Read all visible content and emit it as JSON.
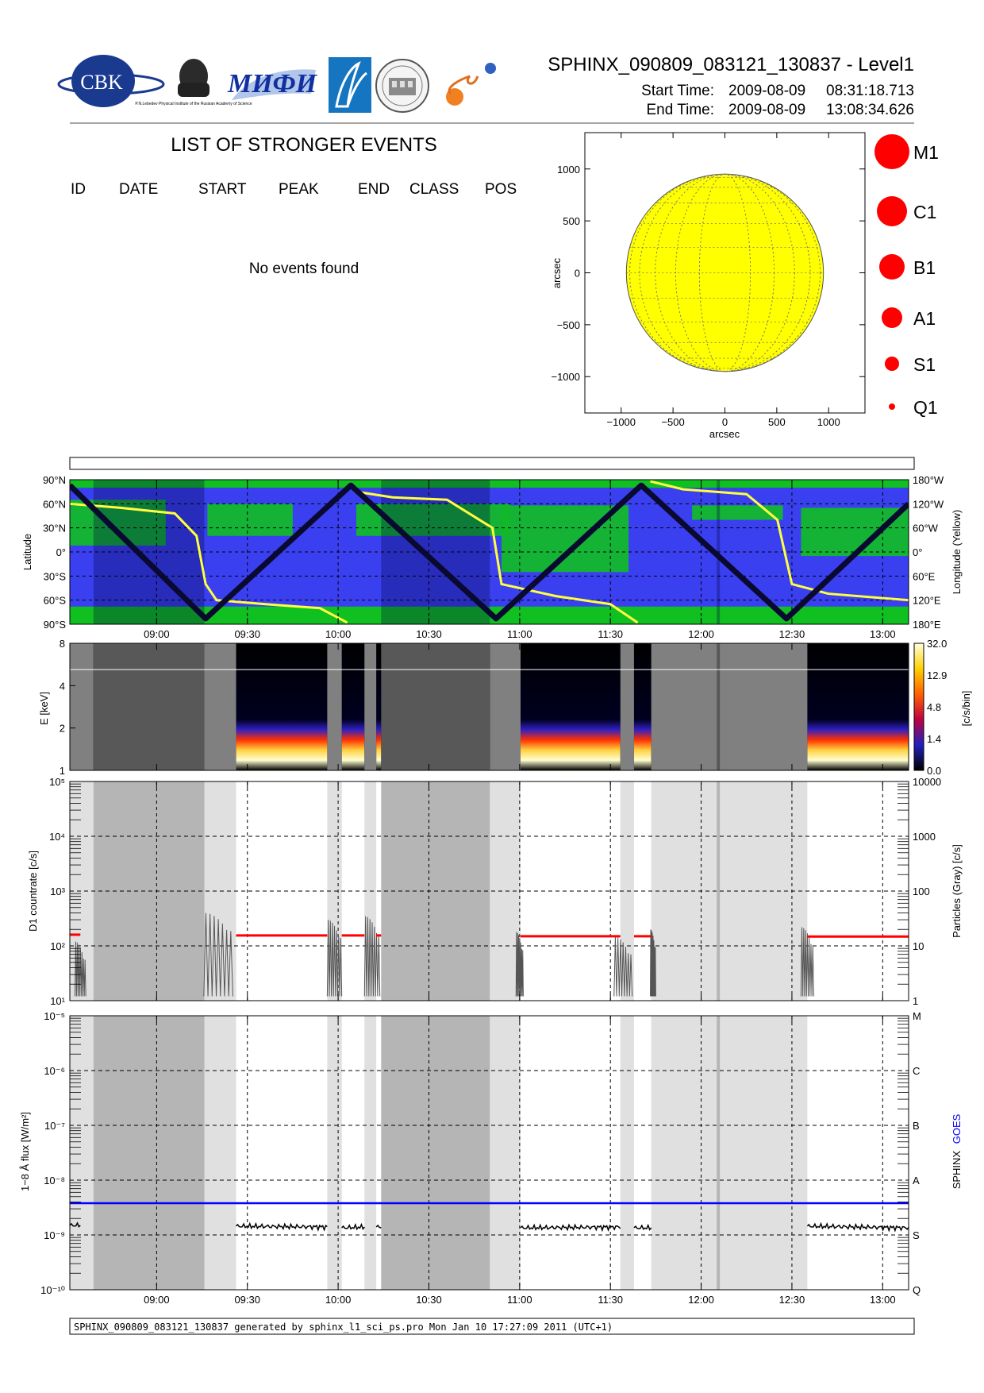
{
  "header": {
    "title": "SPHINX_090809_083121_130837 - Level1",
    "start_label": "Start Time:",
    "start_date": "2009-08-09",
    "start_time": "08:31:18.713",
    "end_label": "End Time:",
    "end_date": "2009-08-09",
    "end_time": "13:08:34.626",
    "logos": [
      {
        "name": "cbk-logo",
        "text": "CBK"
      },
      {
        "name": "lebedev-institute-logo",
        "text": "P.N.Lebedev Physical Institute of the Russian Academy of Science"
      },
      {
        "name": "mifi-logo",
        "text": "МИФИ"
      },
      {
        "name": "institute-logo",
        "text": ""
      },
      {
        "name": "seal-logo",
        "text": ""
      },
      {
        "name": "swirl-logo",
        "text": ""
      }
    ]
  },
  "events": {
    "title": "LIST OF STRONGER EVENTS",
    "columns": [
      "ID",
      "DATE",
      "START",
      "PEAK",
      "END",
      "CLASS",
      "POS"
    ],
    "empty_text": "No events found"
  },
  "sun_map": {
    "xlabel": "arcsec",
    "ylabel": "arcsec",
    "ticks": [
      -1000,
      -500,
      0,
      500,
      1000
    ],
    "tick_labels": [
      "−1000",
      "−500",
      "0",
      "500",
      "1000"
    ],
    "range": [
      -1350,
      1350
    ],
    "disk_radius": 950,
    "disk_color": "#ffff00"
  },
  "legend": {
    "classes": [
      "M1",
      "C1",
      "B1",
      "A1",
      "S1",
      "Q1"
    ],
    "color": "#ff0000"
  },
  "time_axis": {
    "ticks": [
      "09:00",
      "09:30",
      "10:00",
      "10:30",
      "11:00",
      "11:30",
      "12:00",
      "12:30",
      "13:00"
    ],
    "tick_hours": [
      9.0,
      9.5,
      10.0,
      10.5,
      11.0,
      11.5,
      12.0,
      12.5,
      13.0
    ],
    "start_hour": 8.5219,
    "end_hour": 13.1429
  },
  "gray_bands": {
    "dark": [
      [
        8.652,
        9.263
      ],
      [
        10.237,
        10.836
      ],
      [
        12.086,
        12.103
      ]
    ],
    "light": [
      [
        8.5219,
        8.652
      ],
      [
        9.263,
        9.438
      ],
      [
        9.94,
        10.02
      ],
      [
        10.145,
        10.21
      ],
      [
        10.836,
        11.005
      ],
      [
        11.555,
        11.63
      ],
      [
        11.725,
        12.585
      ]
    ]
  },
  "chart_data": [
    {
      "type": "heatmap",
      "name": "orbit-map",
      "ylabel": "Latitude",
      "y2label": "Longitude (Yellow)",
      "ytick_labels": [
        "90°N",
        "60°N",
        "30°N",
        "0°",
        "30°S",
        "60°S",
        "90°S"
      ],
      "y2tick_labels": [
        "180°W",
        "120°W",
        "60°W",
        "0°",
        "60°E",
        "120°E",
        "180°E"
      ],
      "latitude_track": {
        "x": [
          8.522,
          9.27,
          10.07,
          10.87,
          11.67,
          12.47,
          13.143
        ],
        "y": [
          83,
          -83,
          83,
          -83,
          83,
          -83,
          60
        ]
      },
      "longitude_track": {
        "x": [
          8.522,
          8.8,
          9.1,
          9.22,
          9.27,
          9.33,
          9.6,
          9.9,
          10.05,
          10.1,
          10.3,
          10.6,
          10.85,
          10.9,
          11.2,
          11.5,
          11.65,
          11.72,
          11.9,
          12.25,
          12.42,
          12.5,
          12.7,
          13.143
        ],
        "y": [
          60,
          55,
          48,
          20,
          -40,
          -60,
          -65,
          -70,
          -88,
          75,
          68,
          65,
          30,
          -40,
          -55,
          -65,
          -88,
          88,
          78,
          72,
          40,
          -40,
          -52,
          -60
        ]
      },
      "grid": true
    },
    {
      "type": "heatmap",
      "name": "spectrogram",
      "ylabel": "E [keV]",
      "yticks": [
        1,
        2,
        4,
        8
      ],
      "colorbar_label": "[c/s/bin]",
      "colorbar_ticks": [
        "32.0",
        "12.9",
        "4.8",
        "1.4",
        "0.0"
      ]
    },
    {
      "type": "line",
      "name": "d1-countrate",
      "ylabel": "D1 countrate [c/s]",
      "y2label": "Particles (Gray) [c/s]",
      "yscale": "log",
      "ylim": [
        10,
        100000
      ],
      "ytick_labels": [
        "10¹",
        "10²",
        "10³",
        "10⁴",
        "10⁵"
      ],
      "y2tick_labels": [
        "1",
        "10",
        "100",
        "1000",
        "10000"
      ],
      "series": [
        {
          "name": "",
          "color": "#ff0000",
          "segments": [
            {
              "x": [
                8.522,
                8.58
              ],
              "y": [
                160,
                160
              ]
            },
            {
              "x": [
                9.438,
                9.94
              ],
              "y": [
                155,
                155
              ]
            },
            {
              "x": [
                10.02,
                10.145
              ],
              "y": [
                155,
                155
              ]
            },
            {
              "x": [
                10.21,
                10.237
              ],
              "y": [
                155,
                155
              ]
            },
            {
              "x": [
                11.005,
                11.555
              ],
              "y": [
                150,
                150
              ]
            },
            {
              "x": [
                11.63,
                11.725
              ],
              "y": [
                150,
                150
              ]
            },
            {
              "x": [
                12.585,
                13.143
              ],
              "y": [
                148,
                148
              ]
            }
          ]
        },
        {
          "name": "",
          "color": "#555555",
          "bursts": [
            {
              "x": [
                8.55,
                8.61
              ],
              "peak": 12
            },
            {
              "x": [
                9.26,
                9.42
              ],
              "peak": 40
            },
            {
              "x": [
                9.94,
                10.02
              ],
              "peak": 30
            },
            {
              "x": [
                10.145,
                10.23
              ],
              "peak": 35
            },
            {
              "x": [
                10.98,
                11.02
              ],
              "peak": 18
            },
            {
              "x": [
                11.52,
                11.62
              ],
              "peak": 15
            },
            {
              "x": [
                11.72,
                11.75
              ],
              "peak": 20
            },
            {
              "x": [
                12.55,
                12.62
              ],
              "peak": 22
            }
          ]
        }
      ],
      "grid": true
    },
    {
      "type": "line",
      "name": "flux",
      "ylabel": "1−8 Å flux [W/m²]",
      "y2label_parts": [
        "SPHINX",
        "GOES"
      ],
      "yscale": "log",
      "ylim": [
        1e-10,
        1e-05
      ],
      "ytick_labels": [
        "10⁻¹⁰",
        "10⁻⁹",
        "10⁻⁸",
        "10⁻⁷",
        "10⁻⁶",
        "10⁻⁵"
      ],
      "y2tick_labels": [
        "Q",
        "S",
        "A",
        "B",
        "C",
        "M"
      ],
      "series": [
        {
          "name": "GOES",
          "color": "#0000ff",
          "segments": [
            {
              "x": [
                8.522,
                13.143
              ],
              "y": [
                3.8e-09,
                3.8e-09
              ]
            }
          ]
        },
        {
          "name": "SPHINX",
          "color": "#000000",
          "segments": [
            {
              "x": [
                8.522,
                8.58
              ],
              "y": [
                1.5e-09,
                1.5e-09
              ]
            },
            {
              "x": [
                9.438,
                9.94
              ],
              "y": [
                1.45e-09,
                1.4e-09
              ]
            },
            {
              "x": [
                10.02,
                10.145
              ],
              "y": [
                1.35e-09,
                1.4e-09
              ]
            },
            {
              "x": [
                10.21,
                10.237
              ],
              "y": [
                1.4e-09,
                1.4e-09
              ]
            },
            {
              "x": [
                11.005,
                11.555
              ],
              "y": [
                1.35e-09,
                1.4e-09
              ]
            },
            {
              "x": [
                11.63,
                11.725
              ],
              "y": [
                1.35e-09,
                1.35e-09
              ]
            },
            {
              "x": [
                12.585,
                13.143
              ],
              "y": [
                1.45e-09,
                1.35e-09
              ]
            }
          ]
        }
      ],
      "grid": true
    }
  ],
  "footer": {
    "text": "SPHINX_090809_083121_130837 generated by sphinx_l1_sci_ps.pro Mon Jan 10 17:27:09 2011 (UTC+1)"
  }
}
